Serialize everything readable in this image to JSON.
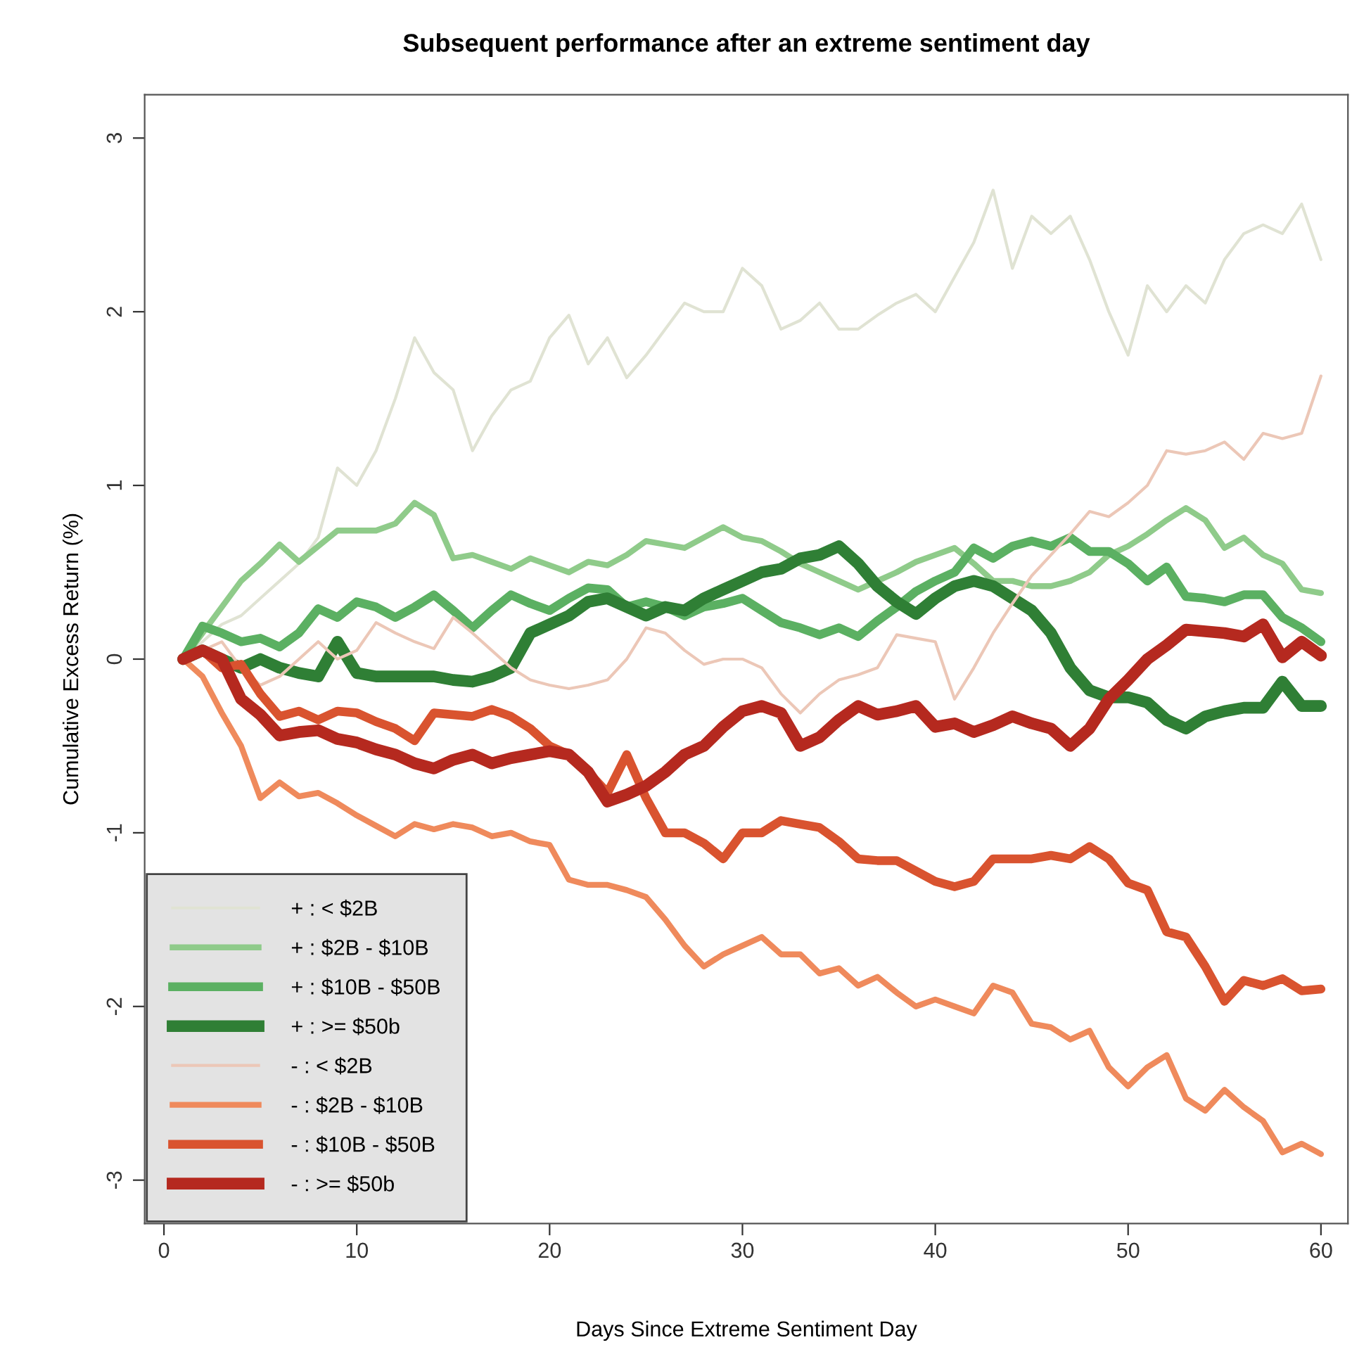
{
  "chart_data": {
    "type": "line",
    "title": "Subsequent performance after an extreme sentiment day",
    "xlabel": "Days Since Extreme Sentiment Day",
    "ylabel": "Cumulative Excess Return (%)",
    "x": [
      1,
      2,
      3,
      4,
      5,
      6,
      7,
      8,
      9,
      10,
      11,
      12,
      13,
      14,
      15,
      16,
      17,
      18,
      19,
      20,
      21,
      22,
      23,
      24,
      25,
      26,
      27,
      28,
      29,
      30,
      31,
      32,
      33,
      34,
      35,
      36,
      37,
      38,
      39,
      40,
      41,
      42,
      43,
      44,
      45,
      46,
      47,
      48,
      49,
      50,
      51,
      52,
      53,
      54,
      55,
      56,
      57,
      58,
      59,
      60
    ],
    "series": [
      {
        "name": "+ : < $2B",
        "color": "#e0e3d3",
        "values": [
          0,
          0.1,
          0.2,
          0.25,
          0.35,
          0.45,
          0.55,
          0.7,
          1.1,
          1.0,
          1.2,
          1.5,
          1.85,
          1.65,
          1.55,
          1.2,
          1.4,
          1.55,
          1.6,
          1.85,
          1.98,
          1.7,
          1.85,
          1.62,
          1.75,
          1.9,
          2.05,
          2.0,
          2.0,
          2.25,
          2.15,
          1.9,
          1.95,
          2.05,
          1.9,
          1.9,
          1.98,
          2.05,
          2.1,
          2.0,
          2.2,
          2.4,
          2.7,
          2.25,
          2.55,
          2.45,
          2.55,
          2.3,
          2.0,
          1.75,
          2.15,
          2.0,
          2.15,
          2.05,
          2.3,
          2.45,
          2.5,
          2.45,
          2.62,
          2.3
        ]
      },
      {
        "name": "+ : $2B - $10B",
        "color": "#8fcb8a",
        "values": [
          0,
          0.15,
          0.3,
          0.45,
          0.55,
          0.66,
          0.56,
          0.65,
          0.74,
          0.74,
          0.74,
          0.78,
          0.9,
          0.83,
          0.58,
          0.6,
          0.56,
          0.52,
          0.58,
          0.54,
          0.5,
          0.56,
          0.54,
          0.6,
          0.68,
          0.66,
          0.64,
          0.7,
          0.76,
          0.7,
          0.68,
          0.62,
          0.55,
          0.5,
          0.45,
          0.4,
          0.45,
          0.5,
          0.56,
          0.6,
          0.64,
          0.55,
          0.45,
          0.45,
          0.42,
          0.42,
          0.45,
          0.5,
          0.6,
          0.65,
          0.72,
          0.8,
          0.87,
          0.8,
          0.64,
          0.7,
          0.6,
          0.55,
          0.4,
          0.38
        ]
      },
      {
        "name": "+ : $10B - $50B",
        "color": "#5bb062",
        "values": [
          0,
          0.19,
          0.15,
          0.1,
          0.12,
          0.07,
          0.15,
          0.29,
          0.24,
          0.33,
          0.3,
          0.24,
          0.3,
          0.37,
          0.28,
          0.18,
          0.28,
          0.37,
          0.32,
          0.28,
          0.35,
          0.41,
          0.4,
          0.3,
          0.33,
          0.3,
          0.25,
          0.3,
          0.32,
          0.35,
          0.28,
          0.21,
          0.18,
          0.14,
          0.18,
          0.13,
          0.22,
          0.3,
          0.39,
          0.45,
          0.5,
          0.64,
          0.58,
          0.65,
          0.68,
          0.65,
          0.7,
          0.62,
          0.62,
          0.55,
          0.45,
          0.53,
          0.36,
          0.35,
          0.33,
          0.37,
          0.37,
          0.24,
          0.18,
          0.1
        ]
      },
      {
        "name": "+ : >= $50b",
        "color": "#2f7f35",
        "values": [
          0,
          0.05,
          0,
          -0.05,
          0,
          -0.05,
          -0.08,
          -0.1,
          0.1,
          -0.08,
          -0.1,
          -0.1,
          -0.1,
          -0.1,
          -0.12,
          -0.13,
          -0.1,
          -0.05,
          0.15,
          0.2,
          0.25,
          0.33,
          0.35,
          0.3,
          0.25,
          0.3,
          0.28,
          0.35,
          0.4,
          0.45,
          0.5,
          0.52,
          0.58,
          0.6,
          0.65,
          0.55,
          0.42,
          0.33,
          0.26,
          0.35,
          0.42,
          0.45,
          0.42,
          0.35,
          0.28,
          0.15,
          -0.05,
          -0.18,
          -0.22,
          -0.22,
          -0.25,
          -0.35,
          -0.4,
          -0.33,
          -0.3,
          -0.28,
          -0.28,
          -0.13,
          -0.27,
          -0.27
        ]
      },
      {
        "name": "- : < $2B",
        "color": "#ecc7b7",
        "values": [
          0,
          0.05,
          0.1,
          -0.05,
          -0.15,
          -0.1,
          0,
          0.1,
          0,
          0.05,
          0.21,
          0.15,
          0.1,
          0.06,
          0.24,
          0.15,
          0.05,
          -0.05,
          -0.12,
          -0.15,
          -0.17,
          -0.15,
          -0.12,
          0,
          0.18,
          0.15,
          0.05,
          -0.03,
          0,
          0,
          -0.05,
          -0.2,
          -0.31,
          -0.2,
          -0.12,
          -0.09,
          -0.05,
          0.14,
          0.12,
          0.1,
          -0.23,
          -0.05,
          0.15,
          0.32,
          0.48,
          0.6,
          0.72,
          0.85,
          0.82,
          0.9,
          1.0,
          1.2,
          1.18,
          1.2,
          1.25,
          1.15,
          1.3,
          1.27,
          1.3,
          1.63
        ]
      },
      {
        "name": "- : $2B - $10B",
        "color": "#ef8a5c",
        "values": [
          0,
          -0.1,
          -0.31,
          -0.5,
          -0.8,
          -0.71,
          -0.79,
          -0.77,
          -0.83,
          -0.9,
          -0.96,
          -1.02,
          -0.95,
          -0.98,
          -0.95,
          -0.97,
          -1.02,
          -1.0,
          -1.05,
          -1.07,
          -1.27,
          -1.3,
          -1.3,
          -1.33,
          -1.37,
          -1.5,
          -1.65,
          -1.77,
          -1.7,
          -1.65,
          -1.6,
          -1.7,
          -1.7,
          -1.81,
          -1.78,
          -1.88,
          -1.83,
          -1.92,
          -2.0,
          -1.96,
          -2.0,
          -2.04,
          -1.88,
          -1.92,
          -2.1,
          -2.12,
          -2.19,
          -2.14,
          -2.35,
          -2.46,
          -2.35,
          -2.28,
          -2.53,
          -2.6,
          -2.48,
          -2.58,
          -2.66,
          -2.84,
          -2.79,
          -2.85
        ]
      },
      {
        "name": "- : $10B - $50B",
        "color": "#d9532f",
        "values": [
          0,
          0.05,
          -0.05,
          -0.03,
          -0.2,
          -0.33,
          -0.3,
          -0.35,
          -0.3,
          -0.31,
          -0.36,
          -0.4,
          -0.47,
          -0.31,
          -0.32,
          -0.33,
          -0.29,
          -0.33,
          -0.4,
          -0.5,
          -0.55,
          -0.65,
          -0.77,
          -0.55,
          -0.8,
          -1.0,
          -1.0,
          -1.06,
          -1.15,
          -1.0,
          -1.0,
          -0.93,
          -0.95,
          -0.97,
          -1.05,
          -1.15,
          -1.16,
          -1.16,
          -1.22,
          -1.28,
          -1.31,
          -1.28,
          -1.15,
          -1.15,
          -1.15,
          -1.13,
          -1.15,
          -1.08,
          -1.15,
          -1.29,
          -1.33,
          -1.57,
          -1.6,
          -1.77,
          -1.97,
          -1.85,
          -1.88,
          -1.84,
          -1.91,
          -1.9
        ]
      },
      {
        "name": "- : >= $50b",
        "color": "#b5291f",
        "values": [
          0,
          0.05,
          0,
          -0.23,
          -0.32,
          -0.44,
          -0.42,
          -0.41,
          -0.46,
          -0.48,
          -0.52,
          -0.55,
          -0.6,
          -0.63,
          -0.58,
          -0.55,
          -0.6,
          -0.57,
          -0.55,
          -0.53,
          -0.55,
          -0.65,
          -0.82,
          -0.78,
          -0.73,
          -0.65,
          -0.55,
          -0.5,
          -0.39,
          -0.3,
          -0.27,
          -0.31,
          -0.5,
          -0.45,
          -0.35,
          -0.27,
          -0.32,
          -0.3,
          -0.27,
          -0.39,
          -0.37,
          -0.42,
          -0.38,
          -0.33,
          -0.37,
          -0.4,
          -0.5,
          -0.4,
          -0.23,
          -0.12,
          0,
          0.08,
          0.17,
          0.16,
          0.15,
          0.13,
          0.2,
          0.01,
          0.1,
          0.02
        ]
      }
    ],
    "xlim": [
      -1,
      61.4
    ],
    "ylim": [
      -3.25,
      3.25
    ],
    "xticks": [
      0,
      10,
      20,
      30,
      40,
      50,
      60
    ],
    "yticks": [
      -3,
      -2,
      -1,
      0,
      1,
      2,
      3
    ],
    "legend": "bottom left",
    "grid": false,
    "line_style": "solid"
  }
}
